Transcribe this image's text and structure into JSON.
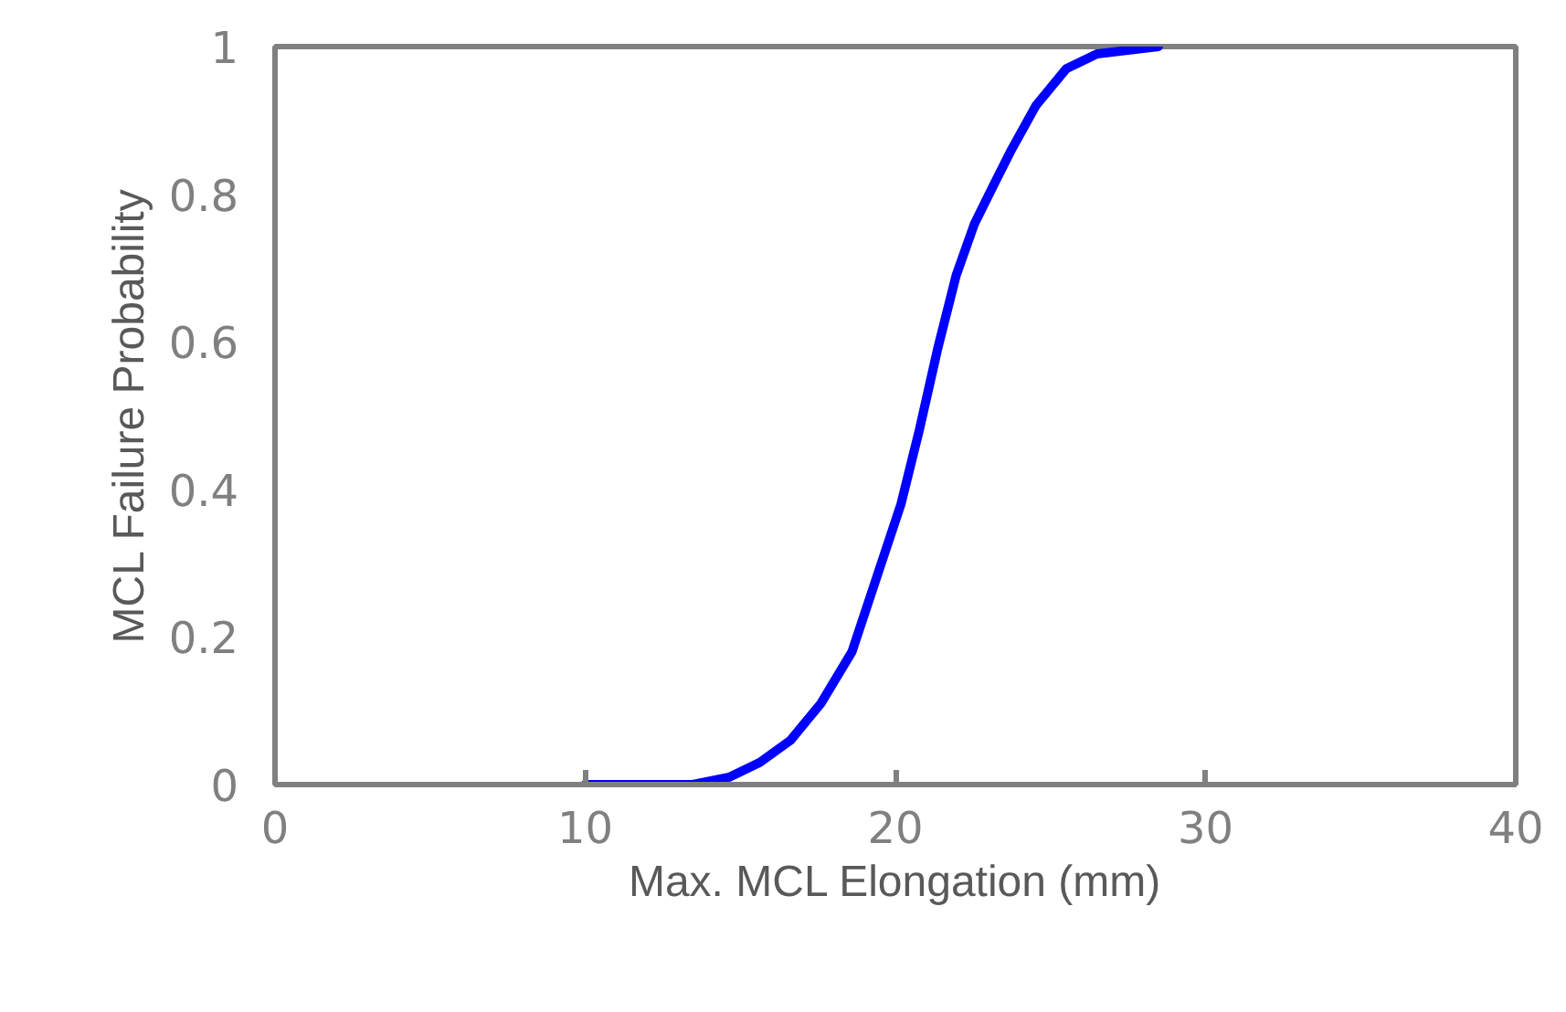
{
  "chart_data": {
    "type": "line",
    "xlabel": "Max. MCL Elongation (mm)",
    "ylabel": "MCL Failure Probability",
    "x": [
      10,
      13.46,
      14.64,
      15.63,
      16.62,
      17.6,
      18.6,
      19.39,
      20.18,
      20.77,
      21.36,
      21.96,
      22.55,
      23.14,
      23.74,
      24.53,
      25.51,
      26.5,
      28.48
    ],
    "series": [
      {
        "color": "#0000ff",
        "values": [
          0,
          0,
          0.01,
          0.03,
          0.06,
          0.11,
          0.18,
          0.28,
          0.38,
          0.48,
          0.59,
          0.69,
          0.76,
          0.81,
          0.86,
          0.92,
          0.97,
          0.99,
          1.0
        ]
      }
    ],
    "xlim": [
      0,
      40
    ],
    "ylim": [
      0,
      1
    ],
    "xticks": [
      0,
      10,
      20,
      30,
      40
    ],
    "yticks": [
      0,
      0.2,
      0.4,
      0.6,
      0.8,
      1
    ],
    "grid": false,
    "marker": "none",
    "line_style": "solid"
  }
}
